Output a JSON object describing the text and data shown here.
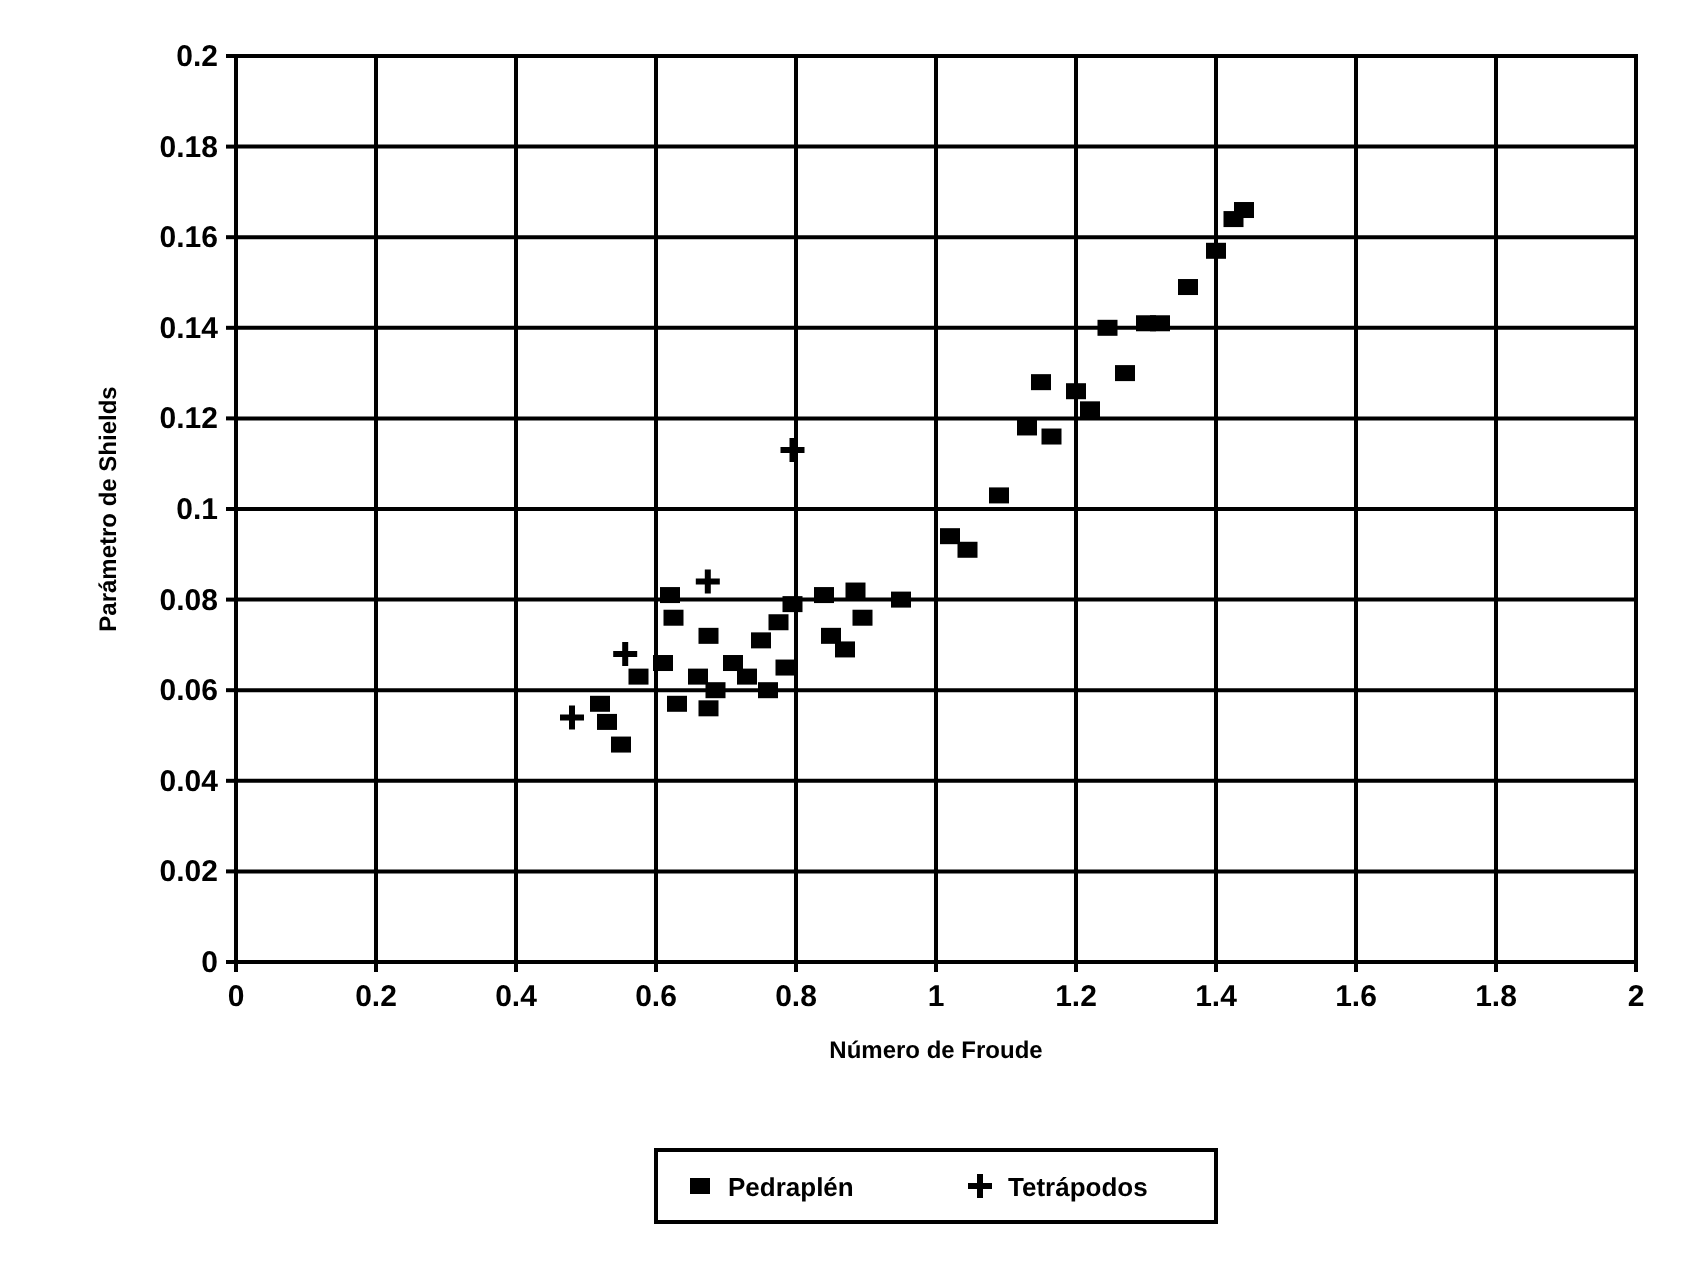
{
  "chart_data": {
    "type": "scatter",
    "xlabel": "Número de Froude",
    "ylabel": "Parámetro de Shields",
    "xlim": [
      0,
      2
    ],
    "ylim": [
      0,
      0.2
    ],
    "xticks": [
      0,
      0.2,
      0.4,
      0.6,
      0.8,
      1,
      1.2,
      1.4,
      1.6,
      1.8,
      2
    ],
    "yticks": [
      0,
      0.02,
      0.04,
      0.06,
      0.08,
      0.1,
      0.12,
      0.14,
      0.16,
      0.18,
      0.2
    ],
    "grid": true,
    "legend": "bottom",
    "series": [
      {
        "name": "Pedraplén",
        "color": "#000000",
        "marker": "square",
        "x": [
          0.55,
          0.53,
          0.52,
          0.575,
          0.62,
          0.625,
          0.61,
          0.675,
          0.675,
          0.63,
          0.71,
          0.75,
          0.775,
          0.785,
          0.76,
          0.73,
          0.795,
          0.84,
          0.85,
          0.885,
          0.895,
          0.95,
          0.87,
          0.66,
          0.685,
          1.02,
          1.045,
          1.09,
          1.13,
          1.165,
          1.15,
          1.2,
          1.22,
          1.245,
          1.3,
          1.32,
          1.27,
          1.36,
          1.44,
          1.425,
          1.4
        ],
        "values": [
          0.048,
          0.053,
          0.057,
          0.063,
          0.081,
          0.076,
          0.066,
          0.072,
          0.056,
          0.057,
          0.066,
          0.071,
          0.075,
          0.065,
          0.06,
          0.063,
          0.079,
          0.081,
          0.072,
          0.082,
          0.076,
          0.08,
          0.069,
          0.063,
          0.06,
          0.094,
          0.091,
          0.103,
          0.118,
          0.116,
          0.128,
          0.126,
          0.122,
          0.14,
          0.141,
          0.141,
          0.13,
          0.149,
          0.166,
          0.164,
          0.157
        ]
      },
      {
        "name": "Tetrápodos",
        "color": "#000000",
        "marker": "cross",
        "x": [
          0.48,
          0.556,
          0.674,
          0.795
        ],
        "values": [
          0.054,
          0.068,
          0.084,
          0.113
        ]
      }
    ]
  }
}
